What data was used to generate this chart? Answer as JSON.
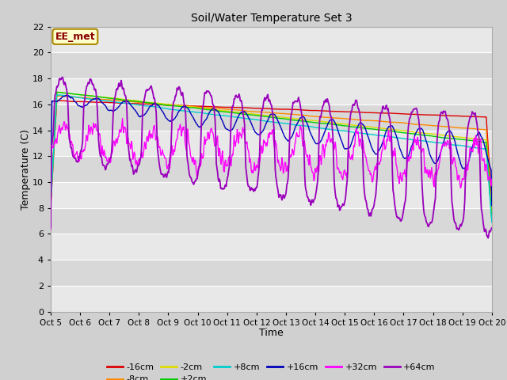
{
  "title": "Soil/Water Temperature Set 3",
  "xlabel": "Time",
  "ylabel": "Temperature (C)",
  "ylim": [
    0,
    22
  ],
  "yticks": [
    0,
    2,
    4,
    6,
    8,
    10,
    12,
    14,
    16,
    18,
    20,
    22
  ],
  "x_labels": [
    "Oct 5",
    "Oct 6",
    "Oct 7",
    "Oct 8",
    "Oct 9",
    "Oct 10",
    "Oct 11",
    "Oct 12",
    "Oct 13",
    "Oct 14",
    "Oct 15",
    "Oct 16",
    "Oct 17",
    "Oct 18",
    "Oct 19",
    "Oct 20"
  ],
  "n_days": 15,
  "series_colors": {
    "-16cm": "#dd0000",
    "-8cm": "#ff8800",
    "-2cm": "#dddd00",
    "+2cm": "#00cc00",
    "+8cm": "#00cccc",
    "+16cm": "#0000bb",
    "+32cm": "#ff00ff",
    "+64cm": "#9900bb"
  },
  "annotation_text": "EE_met",
  "annotation_bg": "#ffffcc",
  "annotation_border": "#aa8800",
  "annotation_text_color": "#880000",
  "fig_bg": "#d0d0d0",
  "plot_bg": "#e8e8e8",
  "band_light": "#e8e8e8",
  "band_dark": "#d8d8d8",
  "grid_color": "#ffffff"
}
